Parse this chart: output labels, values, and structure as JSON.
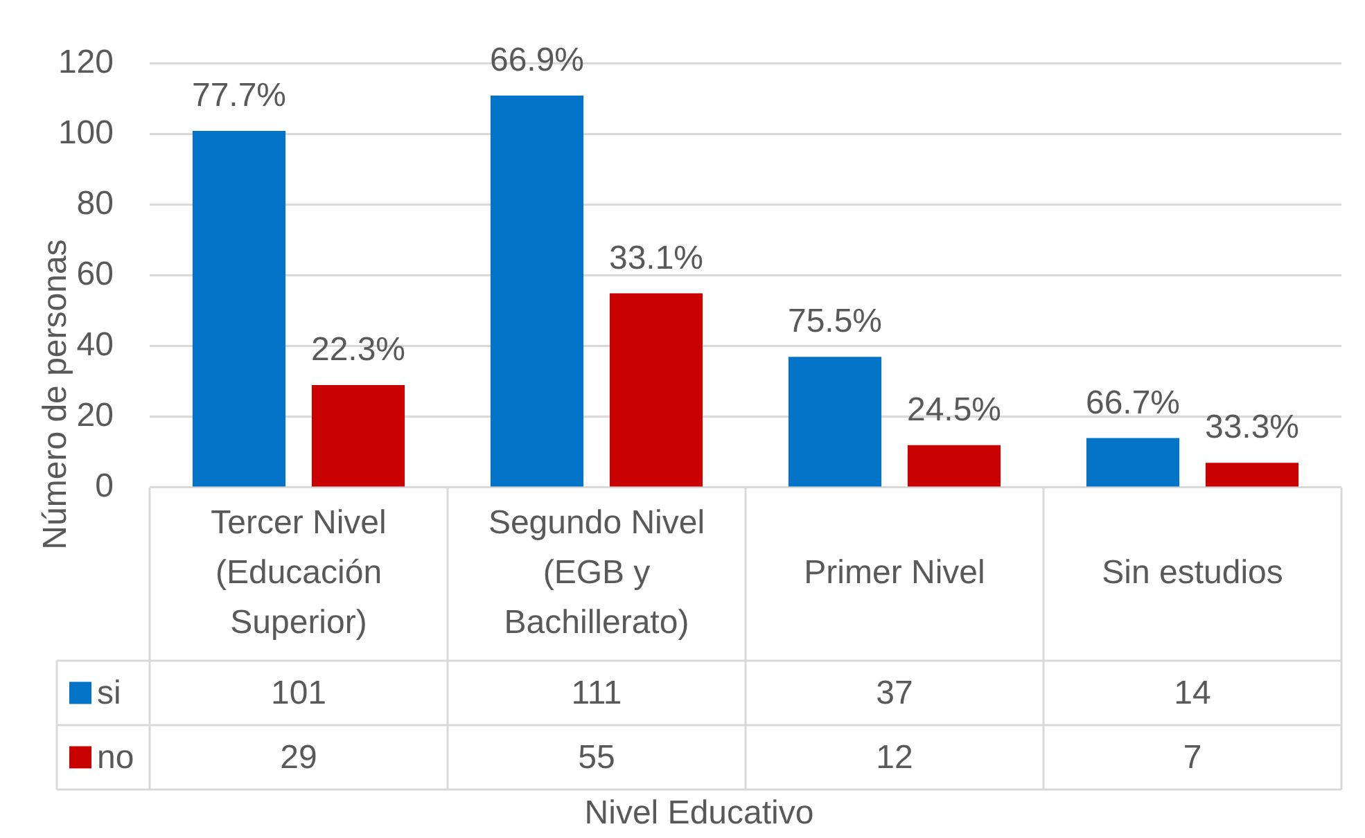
{
  "chart_data": {
    "type": "bar",
    "xlabel": "Nivel Educativo",
    "ylabel": "Número de personas",
    "categories": [
      "Tercer Nivel (Educación Superior)",
      "Segundo Nivel (EGB y Bachillerato)",
      "Primer Nivel",
      "Sin estudios"
    ],
    "series": [
      {
        "name": "si",
        "color": "#0474c8",
        "values": [
          101,
          111,
          37,
          14
        ]
      },
      {
        "name": "no",
        "color": "#c80000",
        "values": [
          29,
          55,
          12,
          7
        ]
      }
    ],
    "annotations": [
      "77.7%",
      "66.9%",
      "75.5%",
      "66.7%",
      "22.3%",
      "33.1%",
      "24.5%",
      "33.3%"
    ],
    "ylim": [
      0,
      120
    ],
    "yticks": [
      0,
      20,
      40,
      60,
      80,
      100,
      120
    ],
    "grid": "y",
    "legend": "bottom",
    "data_labels": true
  }
}
